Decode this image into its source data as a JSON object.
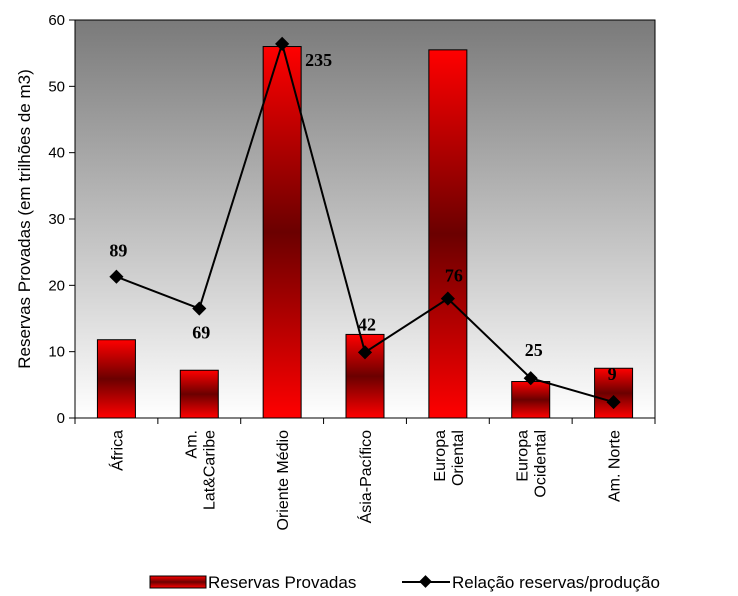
{
  "chart_data": {
    "type": "bar",
    "categories": [
      [
        "África"
      ],
      [
        "Am.",
        "Lat&Caribe"
      ],
      [
        "Oriente Médio"
      ],
      [
        "Ásia-Pacífico"
      ],
      [
        "Europa",
        "Oriental"
      ],
      [
        "Europa",
        "Ocidental"
      ],
      [
        "Am. Norte"
      ]
    ],
    "ylabel": "Reservas Provadas (em trilhões de m3)",
    "ylim": [
      0,
      60
    ],
    "yticks": [
      0,
      10,
      20,
      30,
      40,
      50,
      60
    ],
    "series": [
      {
        "name": "Reservas Provadas",
        "type": "bar",
        "values": [
          11.8,
          7.2,
          56.0,
          12.6,
          55.5,
          5.5,
          7.5
        ]
      },
      {
        "name": "Relação reservas/produção",
        "type": "line",
        "values": [
          21.3,
          16.5,
          56.4,
          9.9,
          18.0,
          6.0,
          2.4
        ],
        "labels": [
          "89",
          "69",
          "235",
          "42",
          "76",
          "25",
          "9"
        ]
      }
    ],
    "legend": "bottom",
    "colors": {
      "plot_background_top": "#7a7a7a",
      "plot_background_bottom": "#ffffff",
      "bar_outer": "#ff0000",
      "bar_inner": "#6b0000",
      "line": "#000000"
    }
  }
}
